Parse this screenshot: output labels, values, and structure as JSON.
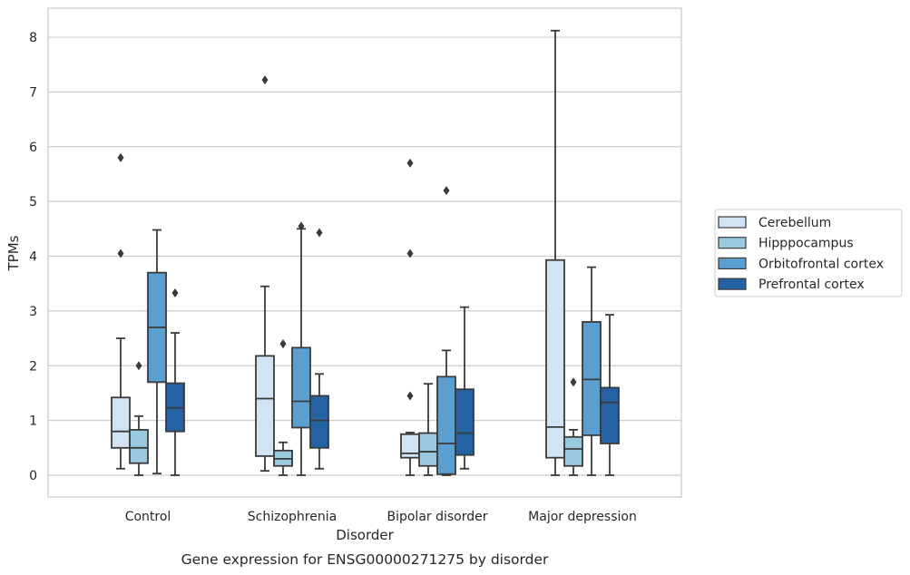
{
  "caption": "Gene expression for ENSG00000271275 by disorder",
  "chart_data": {
    "type": "box",
    "xlabel": "Disorder",
    "ylabel": "TPMs",
    "ylim": [
      -0.4,
      8.5
    ],
    "yticks": [
      0,
      1,
      2,
      3,
      4,
      5,
      6,
      7,
      8
    ],
    "grid": true,
    "legend_position": "right",
    "categories": [
      "Control",
      "Schizophrenia",
      "Bipolar disorder",
      "Major depression"
    ],
    "series": [
      {
        "name": "Cerebellum",
        "color": "#d2e3f3",
        "boxes": [
          {
            "category": "Control",
            "whisker_low": 0.12,
            "q1": 0.5,
            "median": 0.8,
            "q3": 1.42,
            "whisker_high": 2.5,
            "outliers": [
              4.05,
              5.8
            ]
          },
          {
            "category": "Schizophrenia",
            "whisker_low": 0.08,
            "q1": 0.35,
            "median": 1.4,
            "q3": 2.18,
            "whisker_high": 3.45,
            "outliers": [
              7.22
            ]
          },
          {
            "category": "Bipolar disorder",
            "whisker_low": 0.0,
            "q1": 0.32,
            "median": 0.4,
            "q3": 0.75,
            "whisker_high": 0.78,
            "outliers": [
              1.45,
              4.05,
              5.7
            ]
          },
          {
            "category": "Major depression",
            "whisker_low": 0.0,
            "q1": 0.32,
            "median": 0.88,
            "q3": 3.93,
            "whisker_high": 8.12,
            "outliers": []
          }
        ]
      },
      {
        "name": "Hipppocampus",
        "color": "#9ac8e0",
        "boxes": [
          {
            "category": "Control",
            "whisker_low": 0.0,
            "q1": 0.22,
            "median": 0.5,
            "q3": 0.83,
            "whisker_high": 1.08,
            "outliers": [
              2.0
            ]
          },
          {
            "category": "Schizophrenia",
            "whisker_low": 0.0,
            "q1": 0.17,
            "median": 0.3,
            "q3": 0.45,
            "whisker_high": 0.6,
            "outliers": [
              2.4
            ]
          },
          {
            "category": "Bipolar disorder",
            "whisker_low": 0.0,
            "q1": 0.17,
            "median": 0.43,
            "q3": 0.77,
            "whisker_high": 1.67,
            "outliers": []
          },
          {
            "category": "Major depression",
            "whisker_low": 0.0,
            "q1": 0.17,
            "median": 0.48,
            "q3": 0.7,
            "whisker_high": 0.83,
            "outliers": [
              1.7
            ]
          }
        ]
      },
      {
        "name": "Orbitofrontal cortex",
        "color": "#5a9fcf",
        "boxes": [
          {
            "category": "Control",
            "whisker_low": 0.03,
            "q1": 1.7,
            "median": 2.7,
            "q3": 3.7,
            "whisker_high": 4.48,
            "outliers": []
          },
          {
            "category": "Schizophrenia",
            "whisker_low": 0.0,
            "q1": 0.87,
            "median": 1.35,
            "q3": 2.33,
            "whisker_high": 4.5,
            "outliers": [
              4.55
            ]
          },
          {
            "category": "Bipolar disorder",
            "whisker_low": 0.0,
            "q1": 0.02,
            "median": 0.58,
            "q3": 1.8,
            "whisker_high": 2.28,
            "outliers": [
              5.2
            ]
          },
          {
            "category": "Major depression",
            "whisker_low": 0.0,
            "q1": 0.73,
            "median": 1.75,
            "q3": 2.8,
            "whisker_high": 3.8,
            "outliers": []
          }
        ]
      },
      {
        "name": "Prefrontal cortex",
        "color": "#2463a3",
        "boxes": [
          {
            "category": "Control",
            "whisker_low": 0.0,
            "q1": 0.8,
            "median": 1.23,
            "q3": 1.68,
            "whisker_high": 2.6,
            "outliers": [
              3.33
            ]
          },
          {
            "category": "Schizophrenia",
            "whisker_low": 0.12,
            "q1": 0.5,
            "median": 1.0,
            "q3": 1.45,
            "whisker_high": 1.85,
            "outliers": [
              4.43
            ]
          },
          {
            "category": "Bipolar disorder",
            "whisker_low": 0.12,
            "q1": 0.37,
            "median": 0.77,
            "q3": 1.57,
            "whisker_high": 3.07,
            "outliers": []
          },
          {
            "category": "Major depression",
            "whisker_low": 0.0,
            "q1": 0.58,
            "median": 1.33,
            "q3": 1.6,
            "whisker_high": 2.93,
            "outliers": []
          }
        ]
      }
    ]
  }
}
